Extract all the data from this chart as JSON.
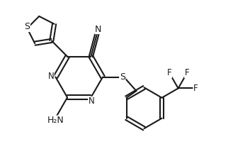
{
  "background_color": "#ffffff",
  "line_color": "#1a1a1a",
  "line_width": 1.5,
  "font_size": 8.5,
  "figsize": [
    3.53,
    2.17
  ],
  "dpi": 100,
  "xlim": [
    0,
    9.5
  ],
  "ylim": [
    0,
    5.8
  ]
}
